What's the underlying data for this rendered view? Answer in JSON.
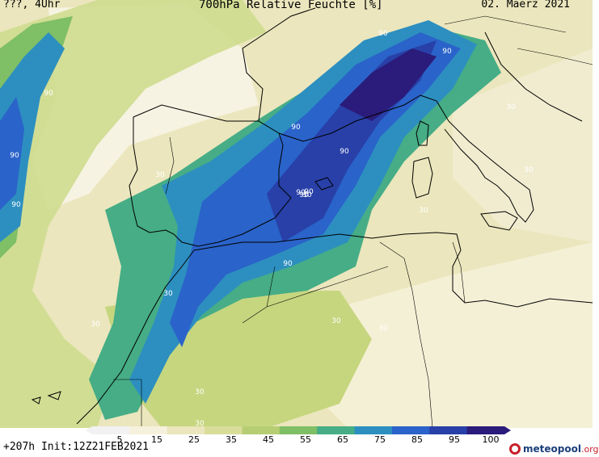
{
  "header": {
    "left": "???, 4Uhr",
    "title": "700hPa Relative Feuchte [%]",
    "date": "02. Maerz 2021"
  },
  "footer": {
    "run_info": "+207h Init:12Z21FEB2021",
    "brand_main": "meteopool",
    "brand_tld": ".org"
  },
  "colorbar": {
    "ticks": [
      "5",
      "15",
      "25",
      "35",
      "45",
      "55",
      "65",
      "75",
      "85",
      "95",
      "100"
    ],
    "colors": [
      "#f2f2f2",
      "#f5f1dc",
      "#ebe6bd",
      "#d9dd9a",
      "#b7cd74",
      "#7fbf66",
      "#46ad86",
      "#2d8fc0",
      "#2a63c9",
      "#2840a8",
      "#2b1b7a"
    ]
  },
  "map": {
    "contour_labels": [
      "90",
      "90",
      "90",
      "90",
      "90",
      "90",
      "90",
      "90",
      "90",
      "90",
      "90",
      "30",
      "30",
      "30",
      "30",
      "30",
      "30",
      "30",
      "30",
      "30",
      "30",
      "30"
    ]
  }
}
